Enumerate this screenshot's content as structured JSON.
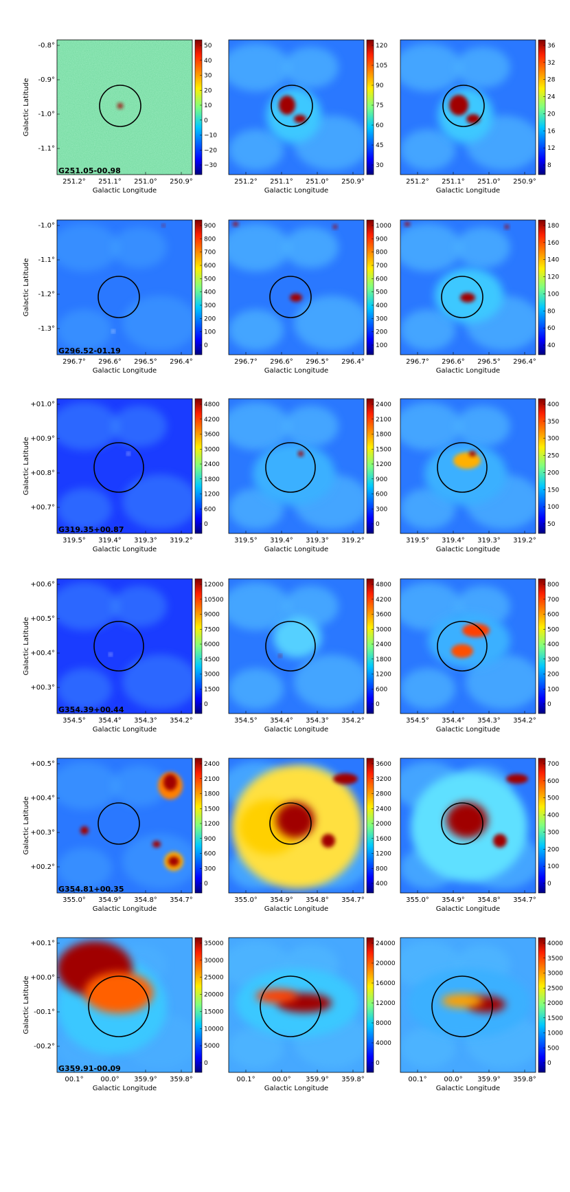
{
  "figure": {
    "rows": [
      {
        "source_label": "G251.05-00.98",
        "ylabel": "Galactic Latitude",
        "xlabel": "Galactic Longitude",
        "lon_ticks": [
          "251.2°",
          "251.1°",
          "251.0°",
          "250.9°"
        ],
        "lat_ticks": [
          "-0.8°",
          "-0.9°",
          "-1.0°",
          "-1.1°"
        ],
        "background": "noise",
        "panels": [
          {
            "colorbar": [
              "50",
              "40",
              "30",
              "20",
              "10",
              "0",
              "−10",
              "−20",
              "−30"
            ]
          },
          {
            "colorbar": [
              "120",
              "105",
              "90",
              "75",
              "60",
              "45",
              "30"
            ]
          },
          {
            "colorbar": [
              "36",
              "32",
              "28",
              "24",
              "20",
              "16",
              "12",
              "8"
            ]
          }
        ]
      },
      {
        "source_label": "G296.52-01.19",
        "ylabel": "Galactic Latitude",
        "xlabel": "Galactic Longitude",
        "lon_ticks": [
          "296.7°",
          "296.6°",
          "296.5°",
          "296.4°"
        ],
        "lat_ticks": [
          "-1.0°",
          "-1.1°",
          "-1.2°",
          "-1.3°"
        ],
        "background": "blue",
        "panels": [
          {
            "colorbar": [
              "900",
              "800",
              "700",
              "600",
              "500",
              "400",
              "300",
              "200",
              "100",
              "0"
            ]
          },
          {
            "colorbar": [
              "1000",
              "900",
              "800",
              "700",
              "600",
              "500",
              "400",
              "300",
              "200",
              "100"
            ]
          },
          {
            "colorbar": [
              "180",
              "160",
              "140",
              "120",
              "100",
              "80",
              "60",
              "40"
            ]
          }
        ]
      },
      {
        "source_label": "G319.35+00.87",
        "ylabel": "Galactic Latitude",
        "xlabel": "Galactic Longitude",
        "lon_ticks": [
          "319.5°",
          "319.4°",
          "319.3°",
          "319.2°"
        ],
        "lat_ticks": [
          "+01.0°",
          "+00.9°",
          "+00.8°",
          "+00.7°"
        ],
        "background": "deepblue",
        "panels": [
          {
            "colorbar": [
              "4800",
              "4200",
              "3600",
              "3000",
              "2400",
              "1800",
              "1200",
              "600",
              "0"
            ]
          },
          {
            "colorbar": [
              "2400",
              "2100",
              "1800",
              "1500",
              "1200",
              "900",
              "600",
              "300",
              "0"
            ]
          },
          {
            "colorbar": [
              "400",
              "350",
              "300",
              "250",
              "200",
              "150",
              "100",
              "50"
            ]
          }
        ]
      },
      {
        "source_label": "G354.39+00.44",
        "ylabel": "Galactic Latitude",
        "xlabel": "Galactic Longitude",
        "lon_ticks": [
          "354.5°",
          "354.4°",
          "354.3°",
          "354.2°"
        ],
        "lat_ticks": [
          "+00.6°",
          "+00.5°",
          "+00.4°",
          "+00.3°"
        ],
        "background": "deepblue",
        "panels": [
          {
            "colorbar": [
              "12000",
              "10500",
              "9000",
              "7500",
              "6000",
              "4500",
              "3000",
              "1500",
              "0"
            ]
          },
          {
            "colorbar": [
              "4800",
              "4200",
              "3600",
              "3000",
              "2400",
              "1800",
              "1200",
              "600",
              "0"
            ]
          },
          {
            "colorbar": [
              "800",
              "700",
              "600",
              "500",
              "400",
              "300",
              "200",
              "100",
              "0"
            ]
          }
        ]
      },
      {
        "source_label": "G354.81+00.35",
        "ylabel": "Galactic Latitude",
        "xlabel": "Galactic Longitude",
        "lon_ticks": [
          "355.0°",
          "354.9°",
          "354.8°",
          "354.7°"
        ],
        "lat_ticks": [
          "+00.5°",
          "+00.4°",
          "+00.3°",
          "+00.2°"
        ],
        "background": "blue",
        "panels": [
          {
            "colorbar": [
              "2400",
              "2100",
              "1800",
              "1500",
              "1200",
              "900",
              "600",
              "300",
              "0"
            ]
          },
          {
            "colorbar": [
              "3600",
              "3200",
              "2800",
              "2400",
              "2000",
              "1600",
              "1200",
              "800",
              "400"
            ]
          },
          {
            "colorbar": [
              "700",
              "600",
              "500",
              "400",
              "300",
              "200",
              "100",
              "0"
            ]
          }
        ]
      },
      {
        "source_label": "G359.91-00.09",
        "ylabel": "Galactic Latitude",
        "xlabel": "Galactic Longitude",
        "lon_ticks": [
          "00.1°",
          "00.0°",
          "359.9°",
          "359.8°"
        ],
        "lat_ticks": [
          "+00.1°",
          "+00.0°",
          "-00.1°",
          "-00.2°"
        ],
        "background": "cyan",
        "panels": [
          {
            "colorbar": [
              "35000",
              "30000",
              "25000",
              "20000",
              "15000",
              "10000",
              "5000",
              "0"
            ]
          },
          {
            "colorbar": [
              "24000",
              "20000",
              "16000",
              "12000",
              "8000",
              "4000",
              "0"
            ]
          },
          {
            "colorbar": [
              "4000",
              "3500",
              "3000",
              "2500",
              "2000",
              "1500",
              "1000",
              "500",
              "0"
            ]
          }
        ]
      }
    ]
  },
  "chart_data": {
    "type": "heatmap",
    "grid": "6x3 image panels",
    "colormap": "jet",
    "panel_columns": 3,
    "sources": [
      "G251.05-00.98",
      "G296.52-01.19",
      "G319.35+00.87",
      "G354.39+00.44",
      "G354.81+00.35",
      "G359.91-00.09"
    ],
    "xlabel": "Galactic Longitude",
    "ylabel": "Galactic Latitude",
    "colorbar_ranges": [
      [
        [
          -35,
          55
        ],
        [
          25,
          130
        ],
        [
          7,
          39
        ]
      ],
      [
        [
          -20,
          900
        ],
        [
          90,
          1010
        ],
        [
          35,
          190
        ]
      ],
      [
        [
          -400,
          5000
        ],
        [
          -100,
          2400
        ],
        [
          20,
          420
        ]
      ],
      [
        [
          -800,
          12000
        ],
        [
          -50,
          4900
        ],
        [
          -10,
          880
        ]
      ],
      [
        [
          -150,
          2450
        ],
        [
          200,
          3600
        ],
        [
          -20,
          760
        ]
      ],
      [
        [
          -3000,
          37000
        ],
        [
          -1500,
          25000
        ],
        [
          -200,
          4000
        ]
      ]
    ],
    "legend": "none",
    "grid_lines": false
  }
}
